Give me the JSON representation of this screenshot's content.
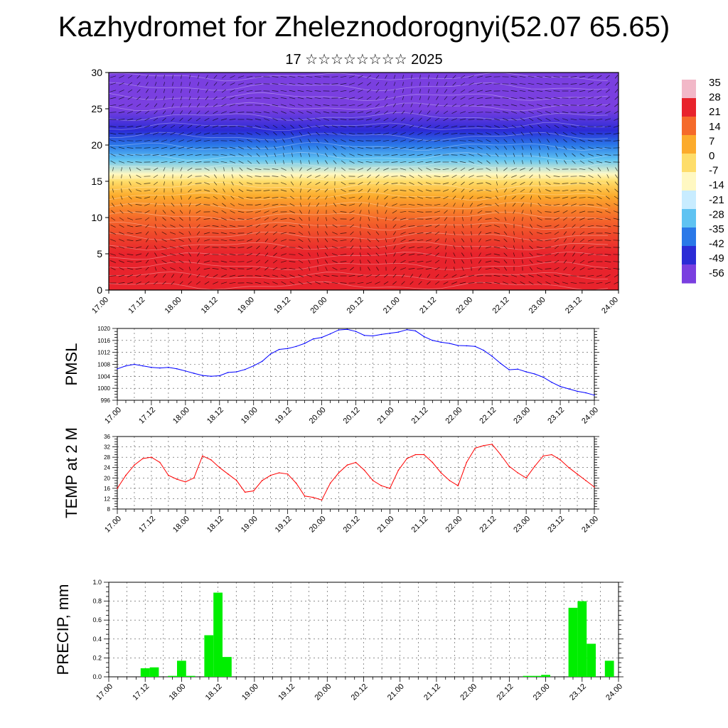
{
  "page": {
    "title": "Kazhydromet for Zheleznodorognyi(52.07 65.65)",
    "subtitle": "17 ☆☆☆☆☆☆☆☆ 2025"
  },
  "chart_data": [
    {
      "id": "cross-section",
      "type": "heatmap",
      "ylim": [
        0,
        30
      ],
      "yticks": [
        0,
        5,
        10,
        15,
        20,
        25,
        30
      ],
      "xticks": [
        "17.00",
        "17.12",
        "18.00",
        "18.12",
        "19.00",
        "19.12",
        "20.00",
        "20.12",
        "21.00",
        "21.12",
        "22.00",
        "22.12",
        "23.00",
        "23.12",
        "24.00"
      ],
      "grid": false,
      "wind_barbs": true,
      "colorbar": {
        "labels": [
          "35",
          "28",
          "21",
          "14",
          "7",
          "0",
          "-7",
          "-14",
          "-21",
          "-28",
          "-35",
          "-42",
          "-49",
          "-56"
        ],
        "colors": [
          "#f2b8c8",
          "#e8232c",
          "#f56a2a",
          "#fcab2c",
          "#fedd6a",
          "#fff8c2",
          "#c8ecff",
          "#5fc3f2",
          "#2a78e8",
          "#2b2bd6",
          "#7a3fe0"
        ],
        "placement": "right"
      },
      "temperature_profile": {
        "levels": [
          0,
          5,
          10,
          13,
          15,
          16,
          18,
          20,
          22,
          25,
          30
        ],
        "values": [
          28,
          24,
          14,
          5,
          -5,
          -12,
          -25,
          -35,
          -48,
          -52,
          -55
        ]
      }
    },
    {
      "id": "pmsl",
      "type": "line",
      "ylabel": "PMSL",
      "ylim": [
        996,
        1020
      ],
      "yticks": [
        996,
        1000,
        1004,
        1008,
        1012,
        1016,
        1020
      ],
      "xticks": [
        "17.00",
        "17.12",
        "18.00",
        "18.12",
        "19.00",
        "19.12",
        "20.00",
        "20.12",
        "21.00",
        "21.12",
        "22.00",
        "22.12",
        "23.00",
        "23.12",
        "24.00"
      ],
      "grid": true,
      "color": "#0000ff",
      "x": [
        0,
        3,
        6,
        9,
        12,
        15,
        18,
        21,
        24,
        27,
        30,
        33,
        36,
        39,
        42,
        45,
        48,
        51,
        54,
        57,
        60,
        63,
        66,
        69,
        72,
        75,
        78,
        81,
        84,
        87,
        90,
        93,
        96,
        99,
        102,
        105,
        108,
        111,
        114,
        117,
        120,
        123,
        126,
        129,
        132,
        135,
        138,
        141,
        144,
        147,
        150,
        153,
        156,
        159,
        162,
        165,
        168
      ],
      "values": [
        1006.5,
        1007.5,
        1008,
        1007.5,
        1007,
        1006.8,
        1007,
        1006.5,
        1005.8,
        1005,
        1004.3,
        1004,
        1004.2,
        1005.3,
        1005.5,
        1006.3,
        1007.5,
        1009,
        1011.5,
        1013,
        1013.3,
        1014,
        1015,
        1016.5,
        1017,
        1018.2,
        1019.5,
        1019.7,
        1019,
        1017.7,
        1017.5,
        1018,
        1018.4,
        1018.8,
        1019.6,
        1019.2,
        1017.3,
        1016,
        1015.4,
        1015,
        1014.3,
        1014.2,
        1014,
        1012.7,
        1010.7,
        1008.3,
        1006.2,
        1006.4,
        1005.5,
        1004.8,
        1003.7,
        1002,
        1000.6,
        999.8,
        999,
        998.5,
        997.7
      ]
    },
    {
      "id": "temp2m",
      "type": "line",
      "ylabel": "TEMP at 2 M",
      "ylim": [
        8,
        36
      ],
      "yticks": [
        8,
        12,
        16,
        20,
        24,
        28,
        32,
        36
      ],
      "xticks": [
        "17.00",
        "17.12",
        "18.00",
        "18.12",
        "19.00",
        "19.12",
        "20.00",
        "20.12",
        "21.00",
        "21.12",
        "22.00",
        "22.12",
        "23.00",
        "23.12",
        "24.00"
      ],
      "grid": true,
      "color": "#ff0000",
      "x": [
        0,
        3,
        6,
        9,
        12,
        15,
        18,
        21,
        24,
        27,
        30,
        33,
        36,
        39,
        42,
        45,
        48,
        51,
        54,
        57,
        60,
        63,
        66,
        69,
        72,
        75,
        78,
        81,
        84,
        87,
        90,
        93,
        96,
        99,
        102,
        105,
        108,
        111,
        114,
        117,
        120,
        123,
        126,
        129,
        132,
        135,
        138,
        141,
        144,
        147,
        150,
        153,
        156,
        159,
        162,
        165,
        168
      ],
      "values": [
        16,
        21,
        25,
        27.5,
        28,
        26,
        21,
        19.5,
        18.5,
        20,
        28.5,
        27,
        24,
        21.5,
        19,
        14.5,
        15,
        19,
        21,
        22,
        21.5,
        18,
        13,
        12.5,
        11.5,
        18,
        22,
        25,
        26,
        23,
        19,
        17,
        16,
        23,
        27.5,
        29,
        29,
        26,
        22,
        19,
        17,
        26,
        31.5,
        32.5,
        33,
        29,
        24.5,
        22,
        20,
        24.5,
        28.5,
        29,
        27,
        24,
        21.5,
        19,
        16.5
      ]
    },
    {
      "id": "precip",
      "type": "bar",
      "ylabel": "PRECIP, mm",
      "ylim": [
        0,
        1.0
      ],
      "yticks": [
        0.0,
        0.2,
        0.4,
        0.6,
        0.8,
        1.0
      ],
      "xticks": [
        "17.00",
        "17.12",
        "18.00",
        "18.12",
        "19.00",
        "19.12",
        "20.00",
        "20.12",
        "21.00",
        "21.12",
        "22.00",
        "22.12",
        "23.00",
        "23.12",
        "24.00"
      ],
      "grid": true,
      "color": "#00ee00",
      "bar_width_hours": 3,
      "x": [
        12,
        15,
        21,
        24,
        27,
        33,
        36,
        39,
        138,
        141,
        144,
        153,
        156,
        159,
        165
      ],
      "values": [
        0.09,
        0.1,
        0.01,
        0.17,
        0.01,
        0.44,
        0.89,
        0.21,
        0.01,
        0.01,
        0.02,
        0.73,
        0.8,
        0.35,
        0.17
      ]
    }
  ]
}
